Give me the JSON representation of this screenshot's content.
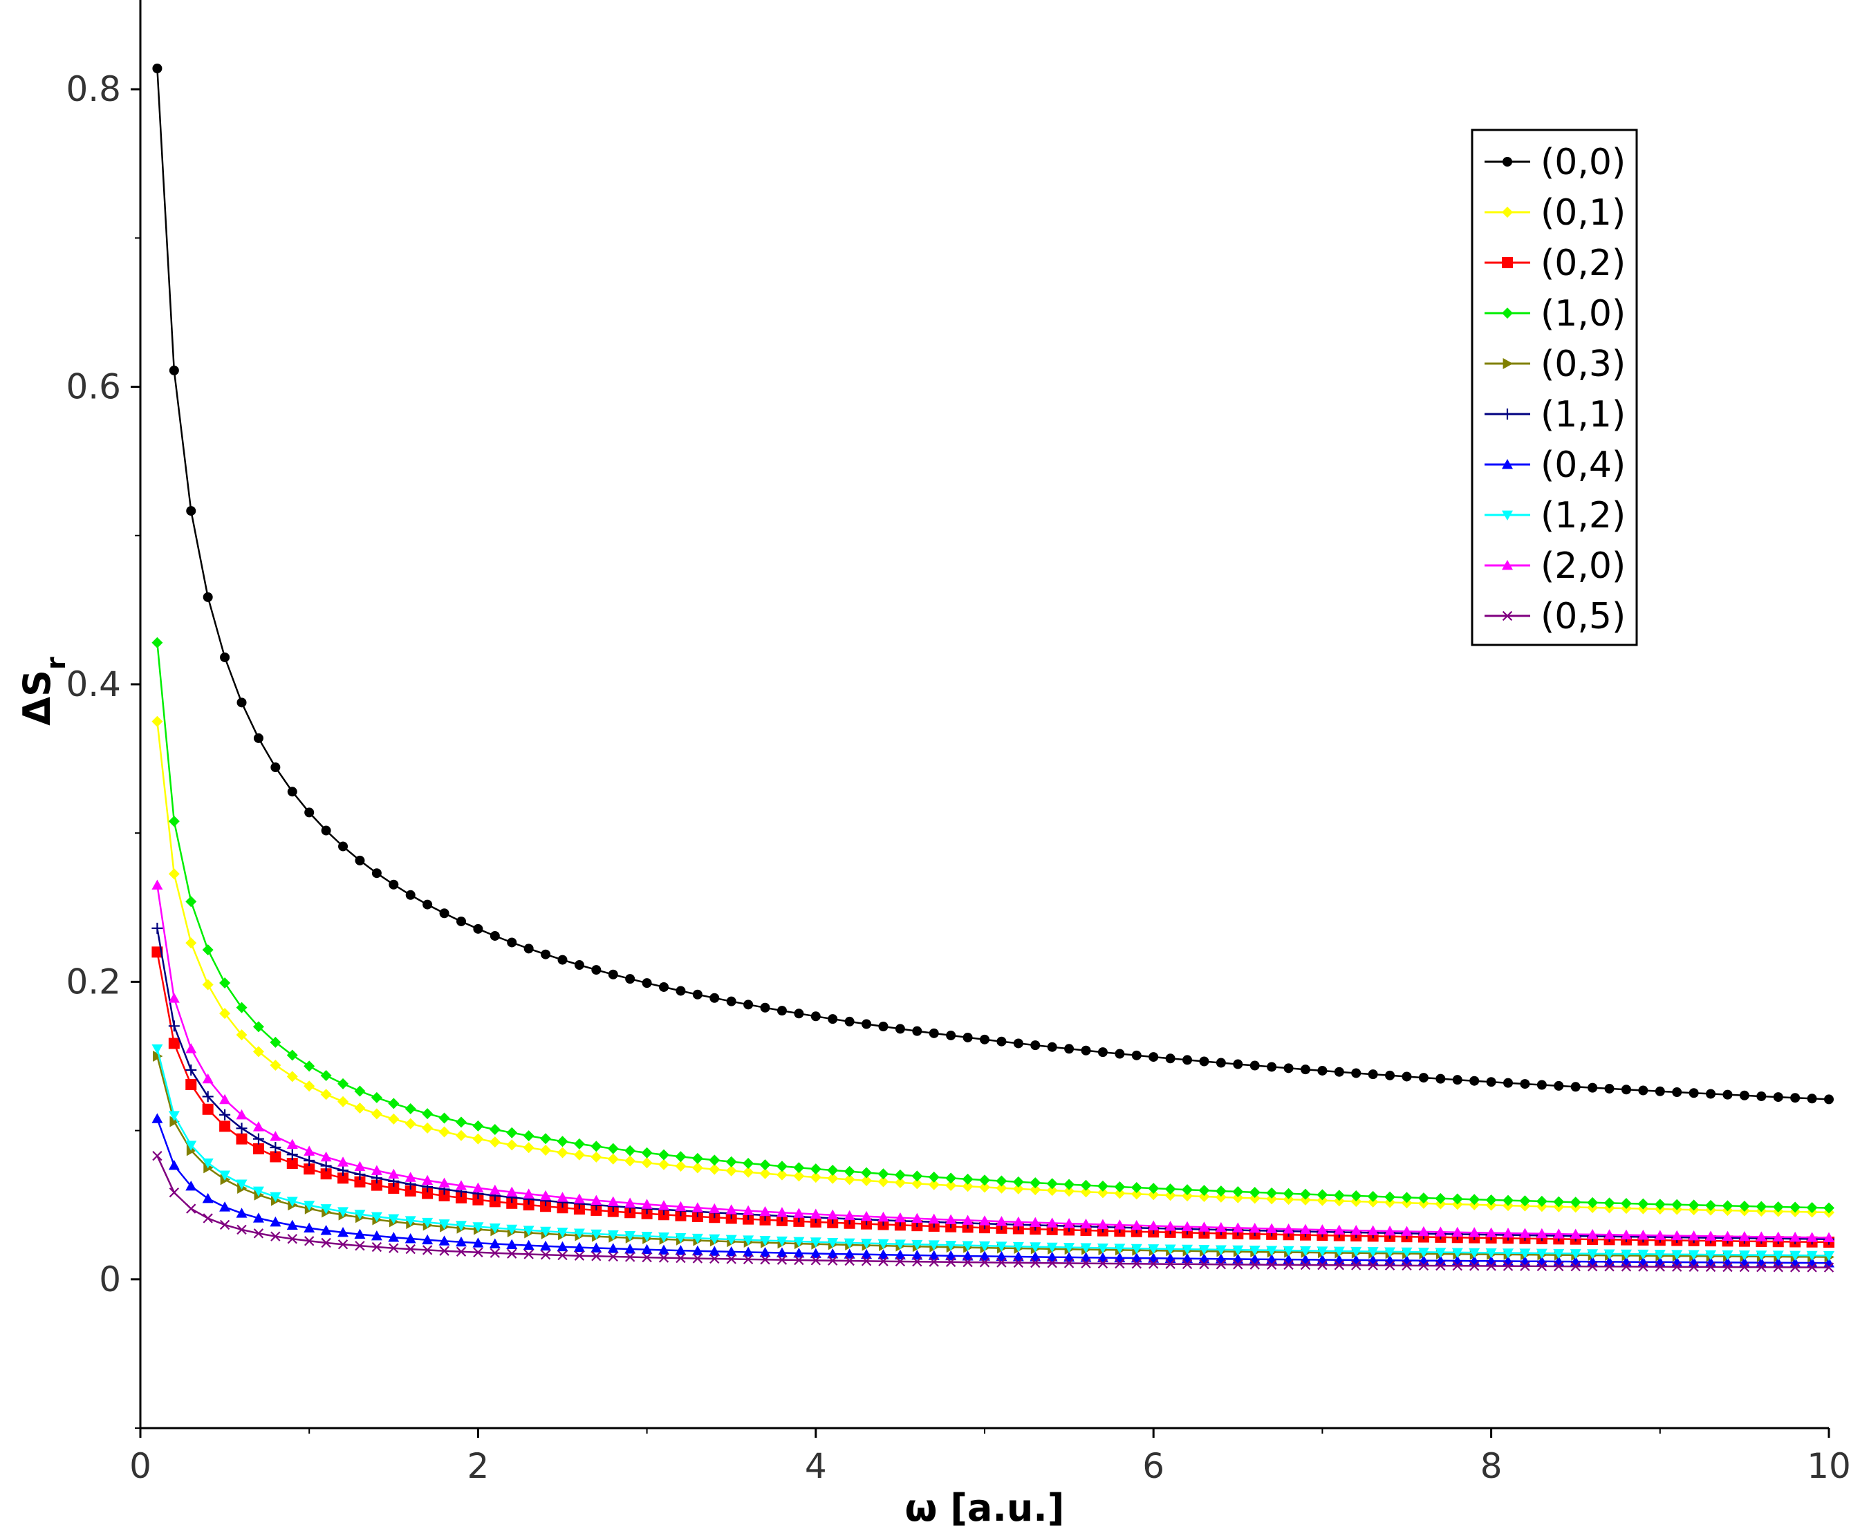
{
  "chart_data": {
    "type": "line",
    "title": "",
    "xlabel": "ω [a.u.]",
    "ylabel": "ΔS",
    "ylabel_subscript": "r",
    "xlim": [
      0,
      10
    ],
    "ylim": [
      -0.1,
      0.86
    ],
    "xticks": [
      0,
      2,
      4,
      6,
      8,
      10
    ],
    "xtick_labels": [
      "0",
      "2",
      "4",
      "6",
      "8",
      "10"
    ],
    "yticks": [
      0,
      0.2,
      0.4,
      0.6,
      0.8
    ],
    "ytick_labels": [
      "0",
      "0.2",
      "0.4",
      "0.6",
      "0.8"
    ],
    "grid": false,
    "legend_position": "top-right",
    "x_range_sampled": [
      0.1,
      10
    ],
    "x_step": 0.1,
    "series": [
      {
        "name": "(0,0)",
        "color": "#000000",
        "marker": "circle",
        "start": 0.814,
        "end": 0.121
      },
      {
        "name": "(0,1)",
        "color": "#ffff00",
        "marker": "diamond",
        "start": 0.375,
        "end": 0.045
      },
      {
        "name": "(0,2)",
        "color": "#ff0000",
        "marker": "square",
        "start": 0.22,
        "end": 0.025
      },
      {
        "name": "(1,0)",
        "color": "#00ee00",
        "marker": "diamond",
        "start": 0.428,
        "end": 0.048
      },
      {
        "name": "(0,3)",
        "color": "#808000",
        "marker": "triangle-right",
        "start": 0.15,
        "end": 0.015
      },
      {
        "name": "(1,1)",
        "color": "#000080",
        "marker": "plus",
        "start": 0.236,
        "end": 0.027
      },
      {
        "name": "(0,4)",
        "color": "#0000ff",
        "marker": "triangle-up",
        "start": 0.108,
        "end": 0.011
      },
      {
        "name": "(1,2)",
        "color": "#00ffff",
        "marker": "triangle-down",
        "start": 0.155,
        "end": 0.016
      },
      {
        "name": "(2,0)",
        "color": "#ff00ff",
        "marker": "triangle-up",
        "start": 0.265,
        "end": 0.028
      },
      {
        "name": "(0,5)",
        "color": "#800080",
        "marker": "cross",
        "start": 0.083,
        "end": 0.008
      }
    ]
  }
}
